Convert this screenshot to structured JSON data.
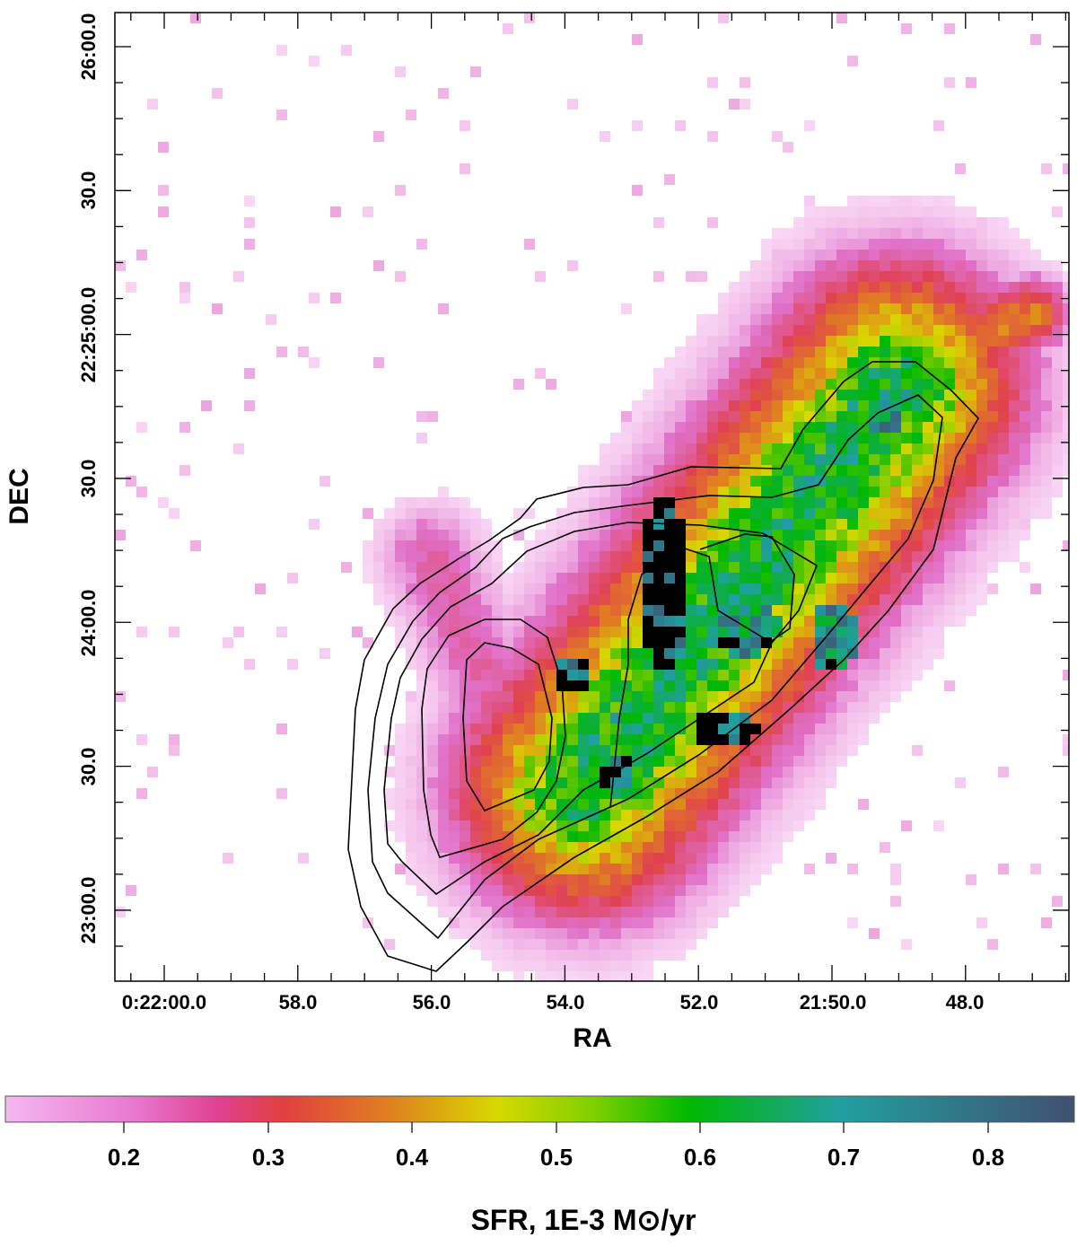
{
  "chart_data": {
    "type": "heatmap",
    "title": "",
    "xlabel": "RA",
    "ylabel": "DEC",
    "x_ticks": [
      "0:22:00.0",
      "58.0",
      "56.0",
      "54.0",
      "52.0",
      "21:50.0",
      "48.0"
    ],
    "y_ticks": [
      "26:00.0",
      "30.0",
      "22:25:00.0",
      "30.0",
      "24:00.0",
      "30.0",
      "23:00.0"
    ],
    "colorbar": {
      "label": "SFR, 1E-3 M⊙/yr",
      "ticks": [
        "0.2",
        "0.3",
        "0.4",
        "0.5",
        "0.6",
        "0.7",
        "0.8"
      ],
      "range": [
        0.12,
        0.86
      ],
      "colors": [
        "#f5b8f0",
        "#e070c8",
        "#e04050",
        "#e08020",
        "#d8d800",
        "#00b800",
        "#20a0a0",
        "#405070"
      ]
    },
    "saturated_color": "#000000",
    "contour_levels": 6,
    "overlay": "SFR map with black contour lines"
  }
}
